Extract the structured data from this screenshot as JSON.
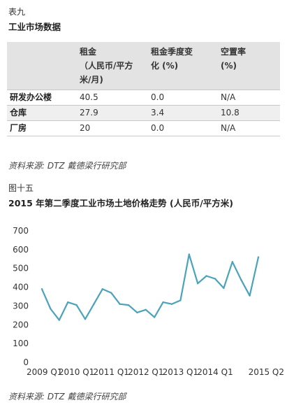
{
  "table": {
    "label": "表九",
    "title": "工业市场数据",
    "headers": [
      "",
      "租金 (人民币/平方米/月)",
      "租金季度变化 (%)",
      "空置率 (%)"
    ],
    "header_lines": [
      [
        ""
      ],
      [
        "租金",
        "（人民币/平方",
        "米/月)"
      ],
      [
        "租金季度变",
        "化 (%)"
      ],
      [
        "空置率",
        "(%)"
      ]
    ],
    "rows": [
      {
        "name": "研发办公楼",
        "rent": "40.5",
        "change": "0.0",
        "vacancy": "N/A"
      },
      {
        "name": "仓库",
        "rent": "27.9",
        "change": "3.4",
        "vacancy": "10.8"
      },
      {
        "name": "厂房",
        "rent": "20",
        "change": "0.0",
        "vacancy": "N/A"
      }
    ],
    "source": "资料来源: DTZ 戴德梁行研究部"
  },
  "figure": {
    "label": "图十五",
    "title": "2015 年第二季度工业市场土地价格走势 (人民币/平方米)",
    "source": "资料来源: DTZ 戴德梁行研究部"
  },
  "chart_data": {
    "type": "line",
    "title": "2015 年第二季度工业市场土地价格走势 (人民币/平方米)",
    "xlabel": "",
    "ylabel": "",
    "ylim": [
      0,
      700
    ],
    "yticks": [
      0,
      100,
      200,
      300,
      400,
      500,
      600,
      700
    ],
    "x_tick_labels": [
      "2009 Q1",
      "2010 Q1",
      "2011 Q1",
      "2012 Q1",
      "2013 Q1",
      "2014 Q1",
      "2015 Q2"
    ],
    "x": [
      "2009 Q1",
      "2009 Q2",
      "2009 Q3",
      "2009 Q4",
      "2010 Q1",
      "2010 Q2",
      "2010 Q3",
      "2010 Q4",
      "2011 Q1",
      "2011 Q2",
      "2011 Q3",
      "2011 Q4",
      "2012 Q1",
      "2012 Q2",
      "2012 Q3",
      "2012 Q4",
      "2013 Q1",
      "2013 Q2",
      "2013 Q3",
      "2013 Q4",
      "2014 Q1",
      "2014 Q2",
      "2014 Q3",
      "2014 Q4",
      "2015 Q1",
      "2015 Q2"
    ],
    "values": [
      390,
      285,
      225,
      320,
      305,
      230,
      310,
      390,
      370,
      310,
      305,
      265,
      280,
      240,
      320,
      310,
      330,
      575,
      420,
      460,
      445,
      395,
      535,
      440,
      355,
      560
    ],
    "line_color": "#4aa3bb",
    "grid": false,
    "legend": "none"
  }
}
